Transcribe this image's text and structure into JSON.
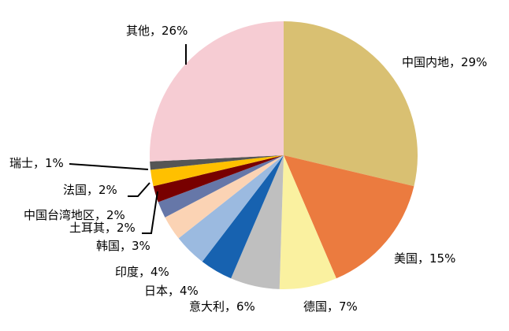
{
  "chart_data": {
    "type": "pie",
    "title": "",
    "start": "top",
    "direction": "clockwise",
    "slices": [
      {
        "label": "中国内地",
        "value": 29,
        "display": "中国内地，29%",
        "color": "#D9C072"
      },
      {
        "label": "美国",
        "value": 15,
        "display": "美国，15%",
        "color": "#EB7B3F"
      },
      {
        "label": "德国",
        "value": 7,
        "display": "德国，7%",
        "color": "#FAF1A0"
      },
      {
        "label": "意大利",
        "value": 6,
        "display": "意大利，6%",
        "color": "#BFBFBF"
      },
      {
        "label": "日本",
        "value": 4,
        "display": "日本，4%",
        "color": "#1762B0"
      },
      {
        "label": "印度",
        "value": 4,
        "display": "印度，4%",
        "color": "#9BBAE0"
      },
      {
        "label": "韩国",
        "value": 3,
        "display": "韩国，3%",
        "color": "#FBD3B4"
      },
      {
        "label": "土耳其",
        "value": 2,
        "display": "土耳其，2%",
        "color": "#6677A8"
      },
      {
        "label": "中国台湾地区",
        "value": 2,
        "display": "中国台湾地区，2%",
        "color": "#780000"
      },
      {
        "label": "法国",
        "value": 2,
        "display": "法国，2%",
        "color": "#FFC000"
      },
      {
        "label": "瑞士",
        "value": 1,
        "display": "瑞士，1%",
        "color": "#555555"
      },
      {
        "label": "其他",
        "value": 26,
        "display": "其他，26%",
        "color": "#F6CCD3"
      }
    ]
  }
}
